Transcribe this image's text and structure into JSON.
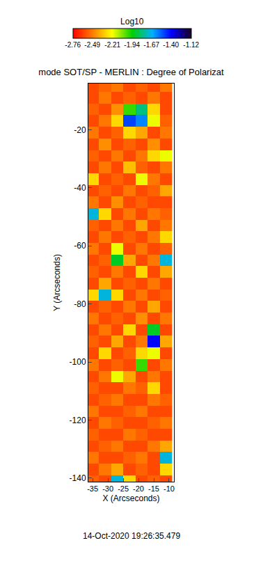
{
  "chart_data": {
    "type": "heatmap",
    "title": "mode SOT/SP - MERLIN : Degree of Polarizat",
    "x_label": "X (Arcseconds)",
    "y_label": "Y (Arcseconds)",
    "annotation": "14-Oct-2020 19:26:35.479",
    "xlim": [
      -36.4,
      -8.4
    ],
    "ylim": [
      -141.2,
      -4.1
    ],
    "xticks": [
      -35,
      -30,
      -25,
      -20,
      -15,
      -10
    ],
    "yticks": [
      -140,
      -120,
      -100,
      -80,
      -60,
      -40,
      -20
    ],
    "x": [
      -35,
      -31,
      -27,
      -23,
      -19,
      -15,
      -11
    ],
    "y": [
      -5,
      -9,
      -13,
      -17,
      -21,
      -25,
      -29,
      -33,
      -37,
      -41,
      -45,
      -49,
      -53,
      -57,
      -61,
      -65,
      -69,
      -73,
      -77,
      -81,
      -85,
      -89,
      -93,
      -97,
      -101,
      -105,
      -109,
      -113,
      -117,
      -121,
      -125,
      -129,
      -133,
      -137,
      -141
    ],
    "cells": [
      [
        -2.6,
        -2.55,
        -2.5,
        -2.6,
        -2.55,
        -2.6,
        -2.5
      ],
      [
        -2.6,
        -2.5,
        -2.6,
        -2.55,
        -2.6,
        -2.5,
        -2.6
      ],
      [
        -2.55,
        -2.6,
        -2.45,
        -2.0,
        -1.8,
        -2.3,
        -2.6
      ],
      [
        -2.6,
        -2.5,
        -2.3,
        -1.5,
        -1.6,
        -2.2,
        -2.55
      ],
      [
        -2.5,
        -2.6,
        -2.55,
        -2.3,
        -2.4,
        -2.6,
        -2.5
      ],
      [
        -2.6,
        -2.45,
        -2.6,
        -2.55,
        -2.6,
        -2.45,
        -2.6
      ],
      [
        -2.55,
        -2.6,
        -2.5,
        -2.6,
        -2.5,
        -2.3,
        -2.2
      ],
      [
        -2.6,
        -2.5,
        -2.6,
        -2.35,
        -2.55,
        -2.6,
        -2.5
      ],
      [
        -2.3,
        -2.6,
        -2.55,
        -2.6,
        -2.2,
        -2.5,
        -2.6
      ],
      [
        -2.6,
        -2.55,
        -2.6,
        -2.5,
        -2.6,
        -2.55,
        -2.4
      ],
      [
        -2.5,
        -2.6,
        -2.45,
        -2.6,
        -2.55,
        -2.6,
        -2.6
      ],
      [
        -1.7,
        -2.3,
        -2.6,
        -2.5,
        -2.6,
        -2.5,
        -2.55
      ],
      [
        -2.55,
        -2.6,
        -2.5,
        -2.6,
        -2.4,
        -2.6,
        -2.5
      ],
      [
        -2.6,
        -2.5,
        -2.6,
        -2.55,
        -2.6,
        -2.5,
        -2.3
      ],
      [
        -2.5,
        -2.6,
        -2.2,
        -2.6,
        -2.5,
        -2.6,
        -2.55
      ],
      [
        -2.6,
        -2.55,
        -1.9,
        -2.4,
        -2.6,
        -2.5,
        -1.7
      ],
      [
        -2.55,
        -2.6,
        -2.5,
        -2.6,
        -2.3,
        -2.6,
        -2.4
      ],
      [
        -2.6,
        -2.4,
        -2.6,
        -2.55,
        -2.6,
        -2.5,
        -2.6
      ],
      [
        -2.3,
        -1.7,
        -2.3,
        -2.6,
        -2.5,
        -2.6,
        -2.55
      ],
      [
        -2.6,
        -2.55,
        -2.6,
        -2.5,
        -2.6,
        -2.4,
        -2.6
      ],
      [
        -2.5,
        -2.6,
        -2.55,
        -2.6,
        -2.45,
        -2.6,
        -2.5
      ],
      [
        -2.6,
        -2.5,
        -2.6,
        -2.3,
        -2.6,
        -1.9,
        -2.6
      ],
      [
        -2.55,
        -2.6,
        -2.4,
        -2.6,
        -2.5,
        -1.4,
        -2.4
      ],
      [
        -2.6,
        -2.3,
        -2.6,
        -2.55,
        -2.3,
        -2.2,
        -2.6
      ],
      [
        -2.5,
        -2.6,
        -2.55,
        -2.6,
        -2.0,
        -2.6,
        -2.5
      ],
      [
        -2.6,
        -2.5,
        -2.2,
        -2.4,
        -2.6,
        -2.5,
        -2.6
      ],
      [
        -2.55,
        -2.6,
        -2.6,
        -2.5,
        -2.55,
        -2.3,
        -2.6
      ],
      [
        -2.6,
        -2.55,
        -2.5,
        -2.6,
        -2.6,
        -2.5,
        -2.55
      ],
      [
        -2.5,
        -2.6,
        -2.6,
        -2.55,
        -2.5,
        -2.6,
        -2.6
      ],
      [
        -2.6,
        -2.5,
        -2.55,
        -2.6,
        -2.6,
        -2.55,
        -2.5
      ],
      [
        -2.55,
        -2.6,
        -2.6,
        -2.5,
        -2.55,
        -2.6,
        -2.6
      ],
      [
        -2.6,
        -2.55,
        -2.5,
        -2.6,
        -2.6,
        -2.5,
        -2.4
      ],
      [
        -2.5,
        -2.6,
        -2.6,
        -2.55,
        -2.5,
        -2.6,
        -1.7
      ],
      [
        -2.6,
        -2.5,
        -2.4,
        -2.6,
        -2.55,
        -2.6,
        -2.3
      ],
      [
        -2.55,
        -2.6,
        -1.7,
        -2.3,
        -2.6,
        -2.55,
        -2.6
      ]
    ],
    "colorbar": {
      "title": "Log10",
      "range": [
        -2.76,
        -1.12
      ],
      "ticks": [
        -2.76,
        -2.49,
        -2.21,
        -1.94,
        -1.67,
        {
          "value": -1.4,
          "label": "-1.40"
        },
        -1.12
      ]
    }
  }
}
